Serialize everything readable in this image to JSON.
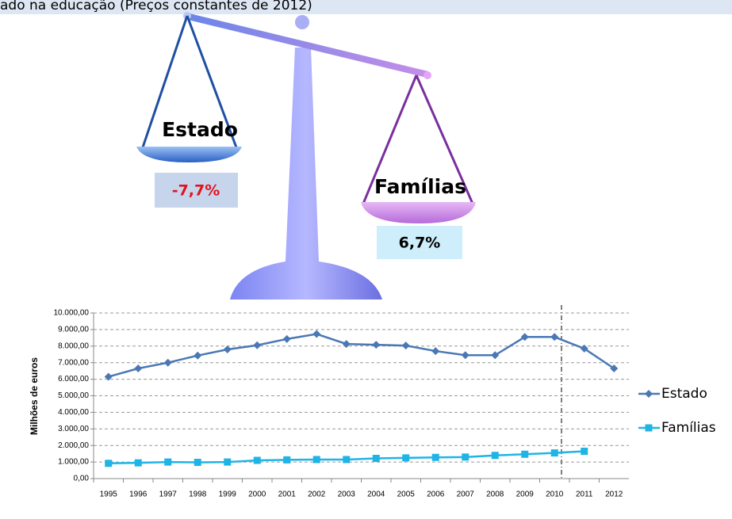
{
  "header": {
    "title": "ado na educação (Preços constantes de 2012)"
  },
  "scale": {
    "left_label": "Estado",
    "left_value": "-7,7%",
    "right_label": "Famílias",
    "right_value": "6,7%"
  },
  "chart_data": {
    "type": "line",
    "y_label": "Milhões de euros",
    "categories": [
      "1995",
      "1996",
      "1997",
      "1998",
      "1999",
      "2000",
      "2001",
      "2002",
      "2003",
      "2004",
      "2005",
      "2006",
      "2007",
      "2008",
      "2009",
      "2010",
      "2011",
      "2012"
    ],
    "series": [
      {
        "name": "Estado",
        "color": "#4a78b5",
        "marker": "diamond",
        "values": [
          6150,
          6650,
          7000,
          7430,
          7800,
          8050,
          8430,
          8730,
          8130,
          8080,
          8030,
          7700,
          7450,
          7450,
          8550,
          8550,
          7850,
          6650
        ]
      },
      {
        "name": "Famílias",
        "color": "#1fb4e6",
        "marker": "square",
        "values": [
          920,
          950,
          1000,
          980,
          1000,
          1100,
          1130,
          1150,
          1150,
          1220,
          1250,
          1280,
          1300,
          1400,
          1470,
          1550,
          1650,
          null
        ]
      }
    ],
    "ylim": [
      0,
      10000
    ],
    "yticks": [
      {
        "value": 0,
        "label": "0,00"
      },
      {
        "value": 1000,
        "label": "1.000,00"
      },
      {
        "value": 2000,
        "label": "2.000,00"
      },
      {
        "value": 3000,
        "label": "3.000,00"
      },
      {
        "value": 4000,
        "label": "4.000,00"
      },
      {
        "value": 5000,
        "label": "5.000,00"
      },
      {
        "value": 6000,
        "label": "6.000,00"
      },
      {
        "value": 7000,
        "label": "7.000,00"
      },
      {
        "value": 8000,
        "label": "8.000,00"
      },
      {
        "value": 9000,
        "label": "9.000,00"
      },
      {
        "value": 10000,
        "label": "10.000,00"
      }
    ],
    "grid": true,
    "legend": "right"
  }
}
